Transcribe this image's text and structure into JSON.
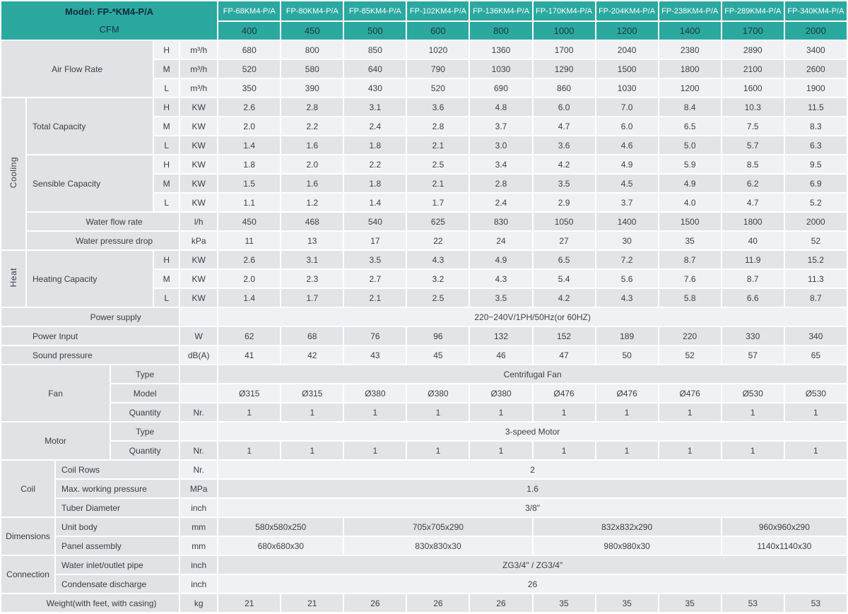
{
  "header": {
    "model_label": "Model: FP-*KM4-P/A",
    "cfm_label": "CFM",
    "accent_color": "#2BA8A0",
    "models": [
      "FP-68KM4-P/A",
      "FP-80KM4-P/A",
      "FP-85KM4-P/A",
      "FP-102KM4-P/A",
      "FP-136KM4-P/A",
      "FP-170KM4-P/A",
      "FP-204KM4-P/A",
      "FP-238KM4-P/A",
      "FP-289KM4-P/A",
      "FP-340KM4-P/A"
    ],
    "cfm": [
      "400",
      "450",
      "500",
      "600",
      "800",
      "1000",
      "1200",
      "1400",
      "1700",
      "2000"
    ]
  },
  "table": {
    "rows": [
      {
        "s": "L",
        "cells": [
          {
            "k": "lab",
            "t": "Air Flow Rate",
            "cs": 4,
            "rs": 3,
            "n": "row-label-air-flow-rate"
          },
          {
            "k": "sub",
            "t": "H"
          },
          {
            "k": "unit",
            "t": "m³/h"
          }
        ],
        "vals": [
          "680",
          "800",
          "850",
          "1020",
          "1360",
          "1700",
          "2040",
          "2380",
          "2890",
          "3400"
        ]
      },
      {
        "s": "D",
        "cells": [
          {
            "k": "sub",
            "t": "M"
          },
          {
            "k": "unit",
            "t": "m³/h"
          }
        ],
        "vals": [
          "520",
          "580",
          "640",
          "790",
          "1030",
          "1290",
          "1500",
          "1800",
          "2100",
          "2600"
        ]
      },
      {
        "s": "L",
        "cells": [
          {
            "k": "sub",
            "t": "L"
          },
          {
            "k": "unit",
            "t": "m³/h"
          }
        ],
        "vals": [
          "350",
          "390",
          "430",
          "520",
          "690",
          "860",
          "1030",
          "1200",
          "1600",
          "1900"
        ]
      },
      {
        "s": "D",
        "cells": [
          {
            "k": "cat",
            "t": "Cooling",
            "rs": 8,
            "n": "category-cooling"
          },
          {
            "k": "labL",
            "t": "Total Capacity",
            "cs": 3,
            "rs": 3,
            "n": "row-label-total-capacity"
          },
          {
            "k": "sub",
            "t": "H"
          },
          {
            "k": "unit",
            "t": "KW"
          }
        ],
        "vals": [
          "2.6",
          "2.8",
          "3.1",
          "3.6",
          "4.8",
          "6.0",
          "7.0",
          "8.4",
          "10.3",
          "11.5"
        ]
      },
      {
        "s": "L",
        "cells": [
          {
            "k": "sub",
            "t": "M"
          },
          {
            "k": "unit",
            "t": "KW"
          }
        ],
        "vals": [
          "2.0",
          "2.2",
          "2.4",
          "2.8",
          "3.7",
          "4.7",
          "6.0",
          "6.5",
          "7.5",
          "8.3"
        ]
      },
      {
        "s": "D",
        "cells": [
          {
            "k": "sub",
            "t": "L"
          },
          {
            "k": "unit",
            "t": "KW"
          }
        ],
        "vals": [
          "1.4",
          "1.6",
          "1.8",
          "2.1",
          "3.0",
          "3.6",
          "4.6",
          "5.0",
          "5.7",
          "6.3"
        ]
      },
      {
        "s": "L",
        "cells": [
          {
            "k": "labL",
            "t": "Sensible Capacity",
            "cs": 3,
            "rs": 3,
            "n": "row-label-sensible-capacity"
          },
          {
            "k": "sub",
            "t": "H"
          },
          {
            "k": "unit",
            "t": "KW"
          }
        ],
        "vals": [
          "1.8",
          "2.0",
          "2.2",
          "2.5",
          "3.4",
          "4.2",
          "4.9",
          "5.9",
          "8.5",
          "9.5"
        ]
      },
      {
        "s": "D",
        "cells": [
          {
            "k": "sub",
            "t": "M"
          },
          {
            "k": "unit",
            "t": "KW"
          }
        ],
        "vals": [
          "1.5",
          "1.6",
          "1.8",
          "2.1",
          "2.8",
          "3.5",
          "4.5",
          "4.9",
          "6.2",
          "6.9"
        ]
      },
      {
        "s": "L",
        "cells": [
          {
            "k": "sub",
            "t": "L"
          },
          {
            "k": "unit",
            "t": "KW"
          }
        ],
        "vals": [
          "1.1",
          "1.2",
          "1.4",
          "1.7",
          "2.4",
          "2.9",
          "3.7",
          "4.0",
          "4.7",
          "5.2"
        ]
      },
      {
        "s": "D",
        "cells": [
          {
            "k": "labB",
            "t": "Water flow rate",
            "cs": 4,
            "n": "row-label-water-flow-rate"
          },
          {
            "k": "unit",
            "t": "l/h"
          }
        ],
        "vals": [
          "450",
          "468",
          "540",
          "625",
          "830",
          "1050",
          "1400",
          "1500",
          "1800",
          "2000"
        ]
      },
      {
        "s": "L",
        "cells": [
          {
            "k": "labB",
            "t": "Water pressure drop",
            "cs": 4,
            "n": "row-label-water-pressure-drop"
          },
          {
            "k": "unit",
            "t": "kPa"
          }
        ],
        "vals": [
          "11",
          "13",
          "17",
          "22",
          "24",
          "27",
          "30",
          "35",
          "40",
          "52"
        ]
      },
      {
        "s": "D",
        "cells": [
          {
            "k": "cat",
            "t": "Heat",
            "rs": 3,
            "n": "category-heat"
          },
          {
            "k": "labL",
            "t": "Heating Capacity",
            "cs": 3,
            "rs": 3,
            "n": "row-label-heating-capacity"
          },
          {
            "k": "sub",
            "t": "H"
          },
          {
            "k": "unit",
            "t": "KW"
          }
        ],
        "vals": [
          "2.6",
          "3.1",
          "3.5",
          "4.3",
          "4.9",
          "6.5",
          "7.2",
          "8.7",
          "11.9",
          "15.2"
        ]
      },
      {
        "s": "L",
        "cells": [
          {
            "k": "sub",
            "t": "M"
          },
          {
            "k": "unit",
            "t": "KW"
          }
        ],
        "vals": [
          "2.0",
          "2.3",
          "2.7",
          "3.2",
          "4.3",
          "5.4",
          "5.6",
          "7.6",
          "8.7",
          "11.3"
        ]
      },
      {
        "s": "D",
        "cells": [
          {
            "k": "sub",
            "t": "L"
          },
          {
            "k": "unit",
            "t": "KW"
          }
        ],
        "vals": [
          "1.4",
          "1.7",
          "2.1",
          "2.5",
          "3.5",
          "4.2",
          "4.3",
          "5.8",
          "6.6",
          "8.7"
        ]
      },
      {
        "s": "L",
        "cells": [
          {
            "k": "labB2",
            "t": "Power supply",
            "cs": 5,
            "n": "row-label-power-supply"
          },
          {
            "k": "unit",
            "t": ""
          }
        ],
        "vals": [
          {
            "t": "220~240V/1PH/50Hz(or 60HZ)",
            "cs": 10
          }
        ]
      },
      {
        "s": "D",
        "cells": [
          {
            "k": "labL2",
            "t": "Power Input",
            "cs": 5,
            "n": "row-label-power-input"
          },
          {
            "k": "unit",
            "t": "W"
          }
        ],
        "vals": [
          "62",
          "68",
          "76",
          "96",
          "132",
          "152",
          "189",
          "220",
          "330",
          "340"
        ]
      },
      {
        "s": "L",
        "cells": [
          {
            "k": "labL2",
            "t": "Sound pressure",
            "cs": 5,
            "n": "row-label-sound-pressure"
          },
          {
            "k": "unit",
            "t": "dB(A)"
          }
        ],
        "vals": [
          "41",
          "42",
          "43",
          "45",
          "46",
          "47",
          "50",
          "52",
          "57",
          "65"
        ]
      },
      {
        "s": "D",
        "cells": [
          {
            "k": "lab",
            "t": "Fan",
            "cs": 3,
            "rs": 3,
            "n": "row-label-fan"
          },
          {
            "k": "lab",
            "t": "Type",
            "cs": 2,
            "n": "row-label-fan-type"
          },
          {
            "k": "unit",
            "t": ""
          }
        ],
        "vals": [
          {
            "t": "Centrifugal Fan",
            "cs": 10
          }
        ]
      },
      {
        "s": "L",
        "cells": [
          {
            "k": "lab",
            "t": "Model",
            "cs": 2,
            "n": "row-label-fan-model"
          },
          {
            "k": "unit",
            "t": ""
          }
        ],
        "vals": [
          "Ø315",
          "Ø315",
          "Ø380",
          "Ø380",
          "Ø380",
          "Ø476",
          "Ø476",
          "Ø476",
          "Ø530",
          "Ø530"
        ]
      },
      {
        "s": "D",
        "cells": [
          {
            "k": "lab",
            "t": "Quantity",
            "cs": 2,
            "n": "row-label-fan-quantity"
          },
          {
            "k": "unit",
            "t": "Nr."
          }
        ],
        "vals": [
          "1",
          "1",
          "1",
          "1",
          "1",
          "1",
          "1",
          "1",
          "1",
          "1"
        ]
      },
      {
        "s": "L",
        "cells": [
          {
            "k": "lab",
            "t": "Motor",
            "cs": 3,
            "rs": 2,
            "n": "row-label-motor"
          },
          {
            "k": "lab",
            "t": "Type",
            "cs": 2,
            "n": "row-label-motor-type"
          },
          {
            "k": "unit",
            "t": ""
          }
        ],
        "vals": [
          {
            "t": "3-speed Motor",
            "cs": 10
          }
        ]
      },
      {
        "s": "D",
        "cells": [
          {
            "k": "lab",
            "t": "Quantity",
            "cs": 2,
            "n": "row-label-motor-quantity"
          },
          {
            "k": "unit",
            "t": "Nr."
          }
        ],
        "vals": [
          "1",
          "1",
          "1",
          "1",
          "1",
          "1",
          "1",
          "1",
          "1",
          "1"
        ]
      },
      {
        "s": "L",
        "cells": [
          {
            "k": "lab",
            "t": "Coil",
            "cs": 2,
            "rs": 3,
            "n": "row-label-coil"
          },
          {
            "k": "labL",
            "t": "Coil Rows",
            "cs": 3,
            "n": "row-label-coil-rows"
          },
          {
            "k": "unit",
            "t": "Nr."
          }
        ],
        "vals": [
          {
            "t": "2",
            "cs": 10
          }
        ]
      },
      {
        "s": "D",
        "cells": [
          {
            "k": "labL",
            "t": "Max. working pressure",
            "cs": 3,
            "n": "row-label-max-working-pressure"
          },
          {
            "k": "unit",
            "t": "MPa"
          }
        ],
        "vals": [
          {
            "t": "1.6",
            "cs": 10
          }
        ]
      },
      {
        "s": "L",
        "cells": [
          {
            "k": "labL",
            "t": "Tuber Diameter",
            "cs": 3,
            "n": "row-label-tuber-diameter"
          },
          {
            "k": "unit",
            "t": "inch"
          }
        ],
        "vals": [
          {
            "t": "3/8\"",
            "cs": 10
          }
        ]
      },
      {
        "s": "D",
        "cells": [
          {
            "k": "lab",
            "t": "Dimensions",
            "cs": 2,
            "rs": 2,
            "n": "row-label-dimensions"
          },
          {
            "k": "labL",
            "t": "Unit body",
            "cs": 3,
            "n": "row-label-unit-body"
          },
          {
            "k": "unit",
            "t": "mm"
          }
        ],
        "vals": [
          {
            "t": "580x580x250",
            "cs": 2
          },
          {
            "t": "705x705x290",
            "cs": 3
          },
          {
            "t": "832x832x290",
            "cs": 3
          },
          {
            "t": "960x960x290",
            "cs": 2
          }
        ]
      },
      {
        "s": "L",
        "cells": [
          {
            "k": "labL",
            "t": "Panel assembly",
            "cs": 3,
            "n": "row-label-panel-assembly"
          },
          {
            "k": "unit",
            "t": "mm"
          }
        ],
        "vals": [
          {
            "t": "680x680x30",
            "cs": 2
          },
          {
            "t": "830x830x30",
            "cs": 3
          },
          {
            "t": "980x980x30",
            "cs": 3
          },
          {
            "t": "1140x1140x30",
            "cs": 2
          }
        ]
      },
      {
        "s": "D",
        "cells": [
          {
            "k": "lab",
            "t": "Connection",
            "cs": 2,
            "rs": 2,
            "n": "row-label-connection"
          },
          {
            "k": "labL",
            "t": "Water inlet/outlet pipe",
            "cs": 3,
            "n": "row-label-water-inlet-outlet-pipe"
          },
          {
            "k": "unit",
            "t": "inch"
          }
        ],
        "vals": [
          {
            "t": "ZG3/4\" / ZG3/4\"",
            "cs": 10
          }
        ]
      },
      {
        "s": "L",
        "cells": [
          {
            "k": "labL",
            "t": "Condensate discharge",
            "cs": 3,
            "n": "row-label-condensate-discharge"
          },
          {
            "k": "unit",
            "t": "inch"
          }
        ],
        "vals": [
          {
            "t": "26",
            "cs": 10
          }
        ]
      },
      {
        "s": "D",
        "cells": [
          {
            "k": "labB",
            "t": "Weight(with feet, with casing)",
            "cs": 5,
            "n": "row-label-weight"
          },
          {
            "k": "unit",
            "t": "kg"
          }
        ],
        "vals": [
          "21",
          "21",
          "26",
          "26",
          "26",
          "35",
          "35",
          "35",
          "53",
          "53"
        ]
      }
    ]
  },
  "colors": {
    "teal_header": "#2BA8A0",
    "row_light": "#EFF1F4",
    "row_dark": "#E3E4E8",
    "label_gray": "#E0E2E5",
    "grid": "#FFFFFF"
  }
}
